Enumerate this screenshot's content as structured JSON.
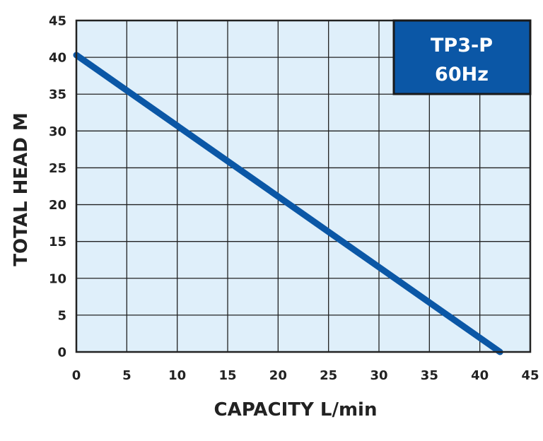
{
  "chart_data": {
    "type": "line",
    "badge": {
      "line1": "TP3-P",
      "line2": "60Hz"
    },
    "xlabel": "CAPACITY L/min",
    "ylabel": "TOTAL HEAD M",
    "xlim": [
      0,
      45
    ],
    "ylim": [
      0,
      45
    ],
    "x_ticks": [
      0,
      5,
      10,
      15,
      20,
      25,
      30,
      35,
      40,
      45
    ],
    "y_ticks": [
      0,
      5,
      10,
      15,
      20,
      25,
      30,
      35,
      40,
      45
    ],
    "grid": true,
    "series": [
      {
        "x": [
          0,
          42
        ],
        "y": [
          40.3,
          0
        ]
      }
    ],
    "colors": {
      "plot_background": "#dfeffa",
      "grid": "#222222",
      "line": "#0b57a6",
      "badge_fill": "#0b57a6",
      "badge_border": "#1a1a1a",
      "text": "#222222"
    }
  }
}
